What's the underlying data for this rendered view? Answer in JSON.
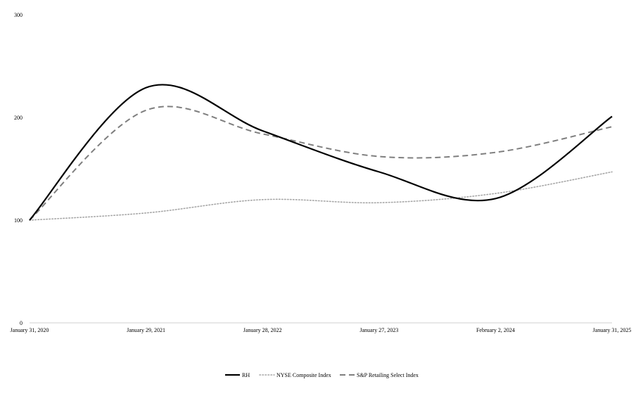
{
  "chart_data": {
    "type": "line",
    "title": "",
    "xlabel": "",
    "ylabel": "",
    "categories": [
      "January 31, 2020",
      "January 29, 2021",
      "January 28, 2022",
      "January 27, 2023",
      "February 2, 2024",
      "January 31, 2025"
    ],
    "ylim": [
      0,
      300
    ],
    "yticks": [
      0,
      100,
      200,
      300
    ],
    "grid": false,
    "legend_position": "bottom-center",
    "series": [
      {
        "name": "RH",
        "values": [
          100,
          229,
          187,
          147,
          121,
          201
        ],
        "color": "#000000",
        "style": "solid"
      },
      {
        "name": "NYSE Composite Index",
        "values": [
          100,
          107,
          120,
          117,
          126,
          147
        ],
        "color": "#a6a6a6",
        "style": "dotted"
      },
      {
        "name": "S&P Retailing Select Index",
        "values": [
          100,
          207,
          184,
          162,
          166,
          191
        ],
        "color": "#7f7f7f",
        "style": "dashed"
      }
    ]
  }
}
